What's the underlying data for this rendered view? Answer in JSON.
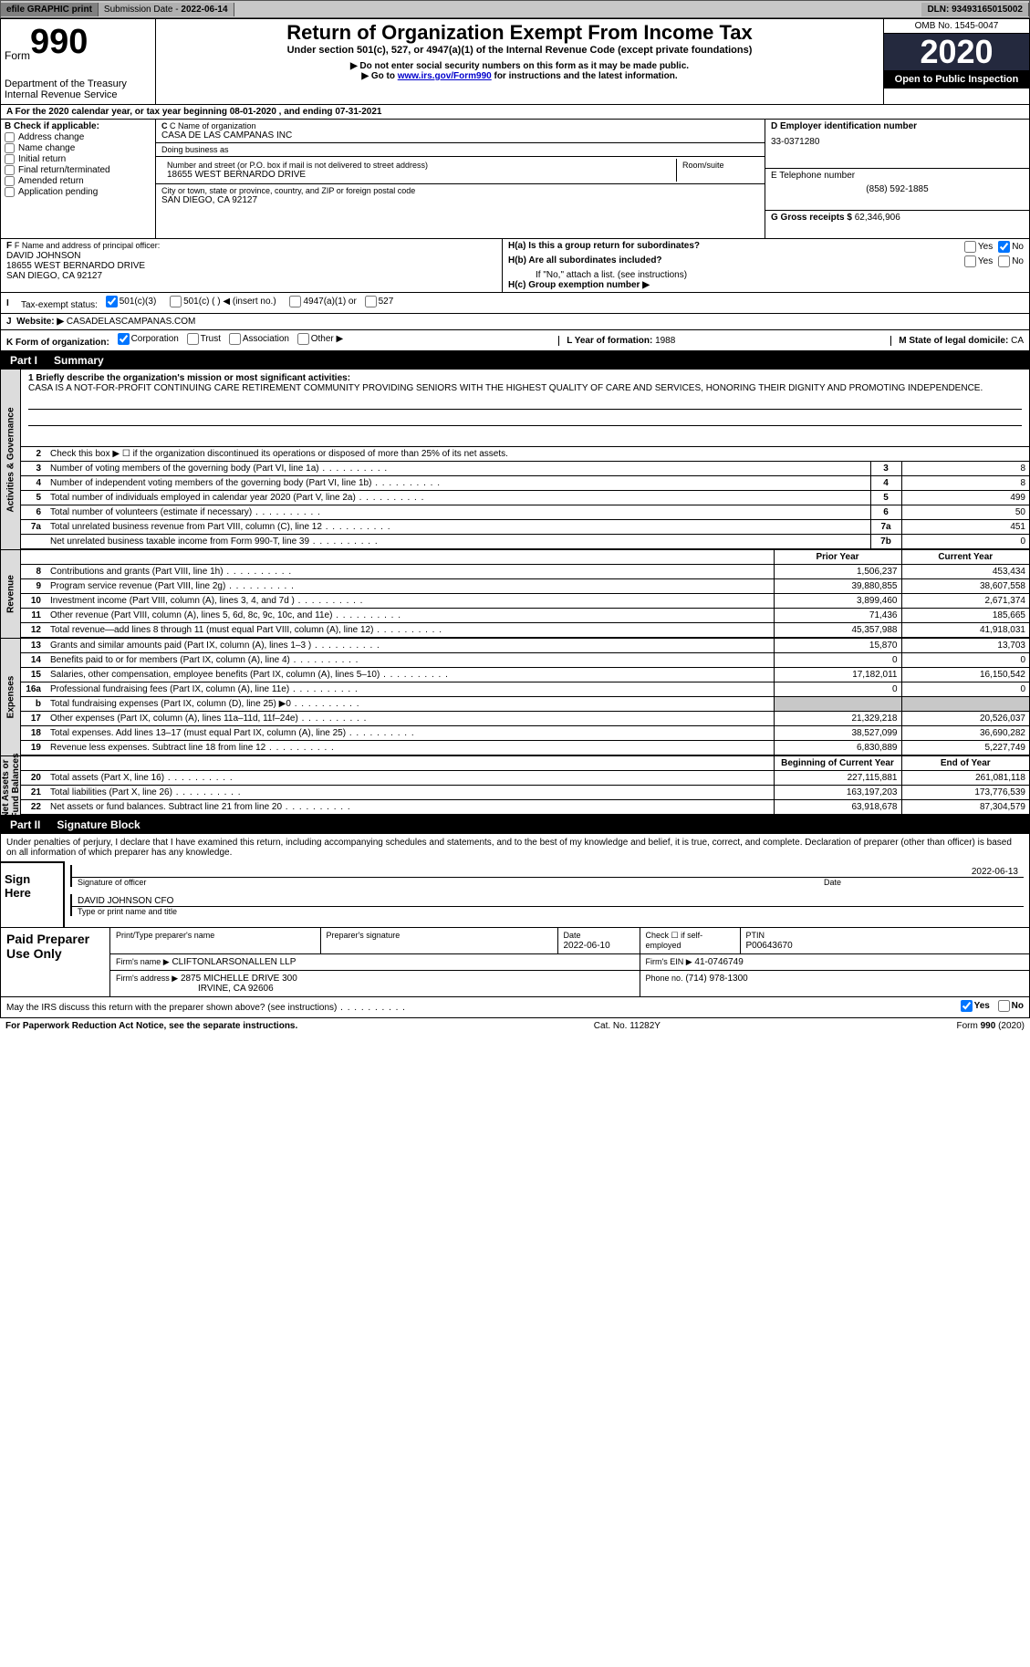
{
  "colors": {
    "topbar_bg": "#c8c8c8",
    "topbar_dark": "#808080",
    "year_bg": "#24293e",
    "shade": "#c8c8c8",
    "link": "#0000cc"
  },
  "topbar": {
    "efile": "efile GRAPHIC print",
    "submission_label": "Submission Date - ",
    "submission_date": "2022-06-14",
    "dln_label": "DLN: ",
    "dln": "93493165015002"
  },
  "header": {
    "form_word": "Form",
    "form_num": "990",
    "dept": "Department of the Treasury\nInternal Revenue Service",
    "title": "Return of Organization Exempt From Income Tax",
    "sub": "Under section 501(c), 527, or 4947(a)(1) of the Internal Revenue Code (except private foundations)",
    "instr1": "▶ Do not enter social security numbers on this form as it may be made public.",
    "instr2_pre": "▶ Go to ",
    "instr2_link": "www.irs.gov/Form990",
    "instr2_post": " for instructions and the latest information.",
    "omb": "OMB No. 1545-0047",
    "year": "2020",
    "open": "Open to Public Inspection"
  },
  "period": "A  For the 2020 calendar year, or tax year beginning 08-01-2020    , and ending 07-31-2021",
  "boxB": {
    "label": "B Check if applicable:",
    "items": [
      "Address change",
      "Name change",
      "Initial return",
      "Final return/terminated",
      "Amended return",
      "Application pending"
    ]
  },
  "boxC": {
    "name_label": "C Name of organization",
    "name": "CASA DE LAS CAMPANAS INC",
    "dba_label": "Doing business as",
    "dba": "",
    "street_label": "Number and street (or P.O. box if mail is not delivered to street address)",
    "room_label": "Room/suite",
    "street": "18655 WEST BERNARDO DRIVE",
    "city_label": "City or town, state or province, country, and ZIP or foreign postal code",
    "city": "SAN DIEGO, CA  92127"
  },
  "boxD": {
    "label": "D Employer identification number",
    "value": "33-0371280"
  },
  "boxE": {
    "label": "E Telephone number",
    "value": "(858) 592-1885"
  },
  "boxG": {
    "label": "G Gross receipts $",
    "value": "62,346,906"
  },
  "boxF": {
    "label": "F Name and address of principal officer:",
    "name": "DAVID JOHNSON",
    "addr1": "18655 WEST BERNARDO DRIVE",
    "addr2": "SAN DIEGO, CA  92127"
  },
  "boxH": {
    "a": "H(a)  Is this a group return for subordinates?",
    "b": "H(b)  Are all subordinates included?",
    "note": "If \"No,\" attach a list. (see instructions)",
    "c": "H(c)  Group exemption number ▶",
    "a_yes": false,
    "a_no": true,
    "b_yes": false,
    "b_no": false
  },
  "boxI": {
    "label": "Tax-exempt status:",
    "opts": [
      "501(c)(3)",
      "501(c) (  ) ◀ (insert no.)",
      "4947(a)(1) or",
      "527"
    ],
    "checked_index": 0
  },
  "boxJ": {
    "label": "Website: ▶",
    "value": "CASADELASCAMPANAS.COM"
  },
  "boxK": {
    "label": "K Form of organization:",
    "opts": [
      "Corporation",
      "Trust",
      "Association",
      "Other ▶"
    ],
    "checked_index": 0
  },
  "boxL": {
    "label": "L Year of formation:",
    "value": "1988"
  },
  "boxM": {
    "label": "M State of legal domicile:",
    "value": "CA"
  },
  "part1": {
    "num": "Part I",
    "title": "Summary"
  },
  "mission": {
    "line1_label": "1   Briefly describe the organization's mission or most significant activities:",
    "text": "CASA IS A NOT-FOR-PROFIT CONTINUING CARE RETIREMENT COMMUNITY PROVIDING SENIORS WITH THE HIGHEST QUALITY OF CARE AND SERVICES, HONORING THEIR DIGNITY AND PROMOTING INDEPENDENCE."
  },
  "gov_rows": [
    {
      "n": "2",
      "desc": "Check this box ▶ ☐  if the organization discontinued its operations or disposed of more than 25% of its net assets.",
      "box": "",
      "val": ""
    },
    {
      "n": "3",
      "desc": "Number of voting members of the governing body (Part VI, line 1a)",
      "box": "3",
      "val": "8"
    },
    {
      "n": "4",
      "desc": "Number of independent voting members of the governing body (Part VI, line 1b)",
      "box": "4",
      "val": "8"
    },
    {
      "n": "5",
      "desc": "Total number of individuals employed in calendar year 2020 (Part V, line 2a)",
      "box": "5",
      "val": "499"
    },
    {
      "n": "6",
      "desc": "Total number of volunteers (estimate if necessary)",
      "box": "6",
      "val": "50"
    },
    {
      "n": "7a",
      "desc": "Total unrelated business revenue from Part VIII, column (C), line 12",
      "box": "7a",
      "val": "451"
    },
    {
      "n": "",
      "desc": "Net unrelated business taxable income from Form 990-T, line 39",
      "box": "7b",
      "val": "0"
    }
  ],
  "rev_header": {
    "prior": "Prior Year",
    "curr": "Current Year"
  },
  "rev_rows": [
    {
      "n": "8",
      "desc": "Contributions and grants (Part VIII, line 1h)",
      "prior": "1,506,237",
      "curr": "453,434"
    },
    {
      "n": "9",
      "desc": "Program service revenue (Part VIII, line 2g)",
      "prior": "39,880,855",
      "curr": "38,607,558"
    },
    {
      "n": "10",
      "desc": "Investment income (Part VIII, column (A), lines 3, 4, and 7d )",
      "prior": "3,899,460",
      "curr": "2,671,374"
    },
    {
      "n": "11",
      "desc": "Other revenue (Part VIII, column (A), lines 5, 6d, 8c, 9c, 10c, and 11e)",
      "prior": "71,436",
      "curr": "185,665"
    },
    {
      "n": "12",
      "desc": "Total revenue—add lines 8 through 11 (must equal Part VIII, column (A), line 12)",
      "prior": "45,357,988",
      "curr": "41,918,031"
    }
  ],
  "exp_rows": [
    {
      "n": "13",
      "desc": "Grants and similar amounts paid (Part IX, column (A), lines 1–3 )",
      "prior": "15,870",
      "curr": "13,703"
    },
    {
      "n": "14",
      "desc": "Benefits paid to or for members (Part IX, column (A), line 4)",
      "prior": "0",
      "curr": "0"
    },
    {
      "n": "15",
      "desc": "Salaries, other compensation, employee benefits (Part IX, column (A), lines 5–10)",
      "prior": "17,182,011",
      "curr": "16,150,542"
    },
    {
      "n": "16a",
      "desc": "Professional fundraising fees (Part IX, column (A), line 11e)",
      "prior": "0",
      "curr": "0"
    },
    {
      "n": "b",
      "desc": "Total fundraising expenses (Part IX, column (D), line 25) ▶0",
      "prior": "SHADE",
      "curr": "SHADE"
    },
    {
      "n": "17",
      "desc": "Other expenses (Part IX, column (A), lines 11a–11d, 11f–24e)",
      "prior": "21,329,218",
      "curr": "20,526,037"
    },
    {
      "n": "18",
      "desc": "Total expenses. Add lines 13–17 (must equal Part IX, column (A), line 25)",
      "prior": "38,527,099",
      "curr": "36,690,282"
    },
    {
      "n": "19",
      "desc": "Revenue less expenses. Subtract line 18 from line 12",
      "prior": "6,830,889",
      "curr": "5,227,749"
    }
  ],
  "na_header": {
    "prior": "Beginning of Current Year",
    "curr": "End of Year"
  },
  "na_rows": [
    {
      "n": "20",
      "desc": "Total assets (Part X, line 16)",
      "prior": "227,115,881",
      "curr": "261,081,118"
    },
    {
      "n": "21",
      "desc": "Total liabilities (Part X, line 26)",
      "prior": "163,197,203",
      "curr": "173,776,539"
    },
    {
      "n": "22",
      "desc": "Net assets or fund balances. Subtract line 21 from line 20",
      "prior": "63,918,678",
      "curr": "87,304,579"
    }
  ],
  "vlabels": {
    "gov": "Activities & Governance",
    "rev": "Revenue",
    "exp": "Expenses",
    "na": "Net Assets or\nFund Balances"
  },
  "part2": {
    "num": "Part II",
    "title": "Signature Block"
  },
  "sig": {
    "declaration": "Under penalties of perjury, I declare that I have examined this return, including accompanying schedules and statements, and to the best of my knowledge and belief, it is true, correct, and complete. Declaration of preparer (other than officer) is based on all information of which preparer has any knowledge.",
    "sign_here": "Sign Here",
    "sig_officer_label": "Signature of officer",
    "date_label": "Date",
    "sig_date": "2022-06-13",
    "name_title": "DAVID JOHNSON  CFO",
    "name_title_label": "Type or print name and title"
  },
  "preparer": {
    "heading": "Paid Preparer Use Only",
    "cols": {
      "name_label": "Print/Type preparer's name",
      "sig_label": "Preparer's signature",
      "date_label": "Date",
      "date": "2022-06-10",
      "self_label": "Check ☐ if self-employed",
      "ptin_label": "PTIN",
      "ptin": "P00643670"
    },
    "firm_name_label": "Firm's name     ▶",
    "firm_name": "CLIFTONLARSONALLEN LLP",
    "firm_ein_label": "Firm's EIN ▶",
    "firm_ein": "41-0746749",
    "firm_addr_label": "Firm's address ▶",
    "firm_addr1": "2875 MICHELLE DRIVE 300",
    "firm_addr2": "IRVINE, CA  92606",
    "phone_label": "Phone no.",
    "phone": "(714) 978-1300"
  },
  "discuss": {
    "text": "May the IRS discuss this return with the preparer shown above? (see instructions)",
    "yes_checked": true,
    "no_checked": false
  },
  "footer": {
    "left": "For Paperwork Reduction Act Notice, see the separate instructions.",
    "mid": "Cat. No. 11282Y",
    "right": "Form 990 (2020)"
  }
}
